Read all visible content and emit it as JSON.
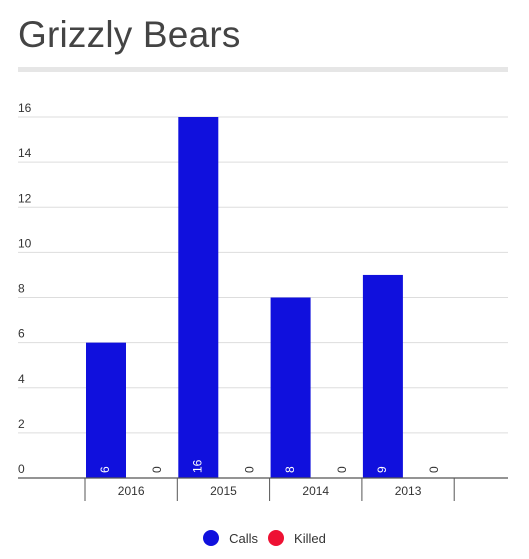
{
  "title": "Grizzly Bears",
  "chart_data": {
    "type": "bar",
    "title": "Grizzly Bears",
    "categories": [
      "2016",
      "2015",
      "2014",
      "2013"
    ],
    "series": [
      {
        "name": "Calls",
        "values": [
          6,
          16,
          8,
          9
        ],
        "color": "#1010dd"
      },
      {
        "name": "Killed",
        "values": [
          0,
          0,
          0,
          0
        ],
        "color": "#ee1133"
      }
    ],
    "ylim": [
      0,
      16
    ],
    "yticks": [
      "0",
      "2",
      "4",
      "6",
      "8",
      "10",
      "12",
      "14",
      "16"
    ],
    "grid": true,
    "legend_position": "bottom-center",
    "data_labels": true
  }
}
